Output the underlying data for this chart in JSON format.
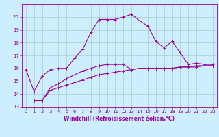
{
  "xlabel": "Windchill (Refroidissement éolien,°C)",
  "x": [
    0,
    1,
    2,
    3,
    4,
    5,
    6,
    7,
    8,
    9,
    10,
    11,
    12,
    13,
    14,
    15,
    16,
    17,
    18,
    19,
    20,
    21,
    22,
    23
  ],
  "line2": [
    15.9,
    14.2,
    15.4,
    15.9,
    16.0,
    16.0,
    16.8,
    17.5,
    18.8,
    19.8,
    19.8,
    19.8,
    20.0,
    20.2,
    19.7,
    19.3,
    18.1,
    17.6,
    18.1,
    17.2,
    16.3,
    16.4,
    16.3,
    16.3
  ],
  "line3": [
    null,
    13.5,
    13.5,
    14.5,
    14.8,
    15.2,
    15.5,
    15.8,
    16.0,
    16.2,
    16.3,
    16.3,
    16.3,
    15.9,
    16.0,
    16.0,
    16.0,
    16.0,
    16.0,
    16.1,
    16.1,
    16.1,
    16.2,
    16.2
  ],
  "line4": [
    null,
    13.5,
    13.5,
    14.3,
    14.5,
    14.7,
    14.9,
    15.1,
    15.3,
    15.5,
    15.6,
    15.7,
    15.8,
    15.9,
    16.0,
    16.0,
    16.0,
    16.0,
    16.0,
    16.1,
    16.1,
    16.2,
    16.2,
    16.2
  ],
  "ylim": [
    13,
    21
  ],
  "xlim": [
    -0.5,
    23.5
  ],
  "yticks": [
    13,
    14,
    15,
    16,
    17,
    18,
    19,
    20
  ],
  "xtick_labels": [
    "0",
    "1",
    "2",
    "3",
    "4",
    "5",
    "6",
    "7",
    "8",
    "9",
    "10",
    "11",
    "12",
    "13",
    "14",
    "15",
    "16",
    "17",
    "18",
    "19",
    "20",
    "21",
    "22",
    "23"
  ],
  "color": "#990099",
  "bg_color": "#cceeff",
  "grid_color": "#aacccc",
  "label_fontsize": 5.5,
  "tick_fontsize": 5.0
}
